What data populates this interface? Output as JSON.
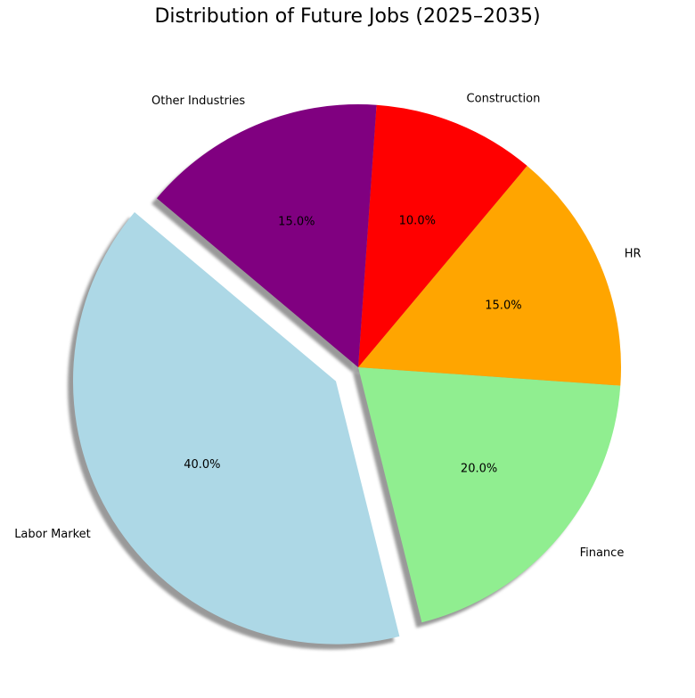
{
  "chart_data": {
    "type": "pie",
    "title": "Distribution of Future Jobs (2025–2035)",
    "start_angle_deg": 140,
    "direction": "counterclockwise",
    "shadow": true,
    "slices": [
      {
        "label": "Labor Market",
        "value": 40,
        "pct_label": "40.0%",
        "color": "#add8e6",
        "exploded": true
      },
      {
        "label": "Finance",
        "value": 20,
        "pct_label": "20.0%",
        "color": "#90ee90",
        "exploded": false
      },
      {
        "label": "HR",
        "value": 15,
        "pct_label": "15.0%",
        "color": "#ffa500",
        "exploded": false
      },
      {
        "label": "Construction",
        "value": 10,
        "pct_label": "10.0%",
        "color": "#ff0000",
        "exploded": false
      },
      {
        "label": "Other Industries",
        "value": 15,
        "pct_label": "15.0%",
        "color": "#800080",
        "exploded": false
      }
    ]
  }
}
